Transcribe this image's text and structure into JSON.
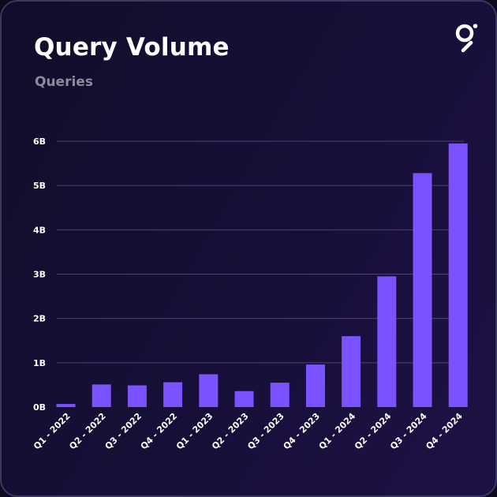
{
  "header": {
    "title": "Query Volume",
    "subtitle": "Queries",
    "logo_icon": "graph-logo-icon"
  },
  "colors": {
    "bar": "#7b52ff",
    "grid": "#4a4470",
    "text": "#ffffff",
    "subtitle": "#8e8a9c"
  },
  "chart_data": {
    "type": "bar",
    "title": "Query Volume",
    "subtitle": "Queries",
    "xlabel": "",
    "ylabel": "",
    "ylim": [
      0,
      6
    ],
    "y_unit": "B",
    "yticks": [
      0,
      1,
      2,
      3,
      4,
      5,
      6
    ],
    "ytick_labels": [
      "0B",
      "1B",
      "2B",
      "3B",
      "4B",
      "5B",
      "6B"
    ],
    "grid": true,
    "categories": [
      "Q1 - 2022",
      "Q2 - 2022",
      "Q3 - 2022",
      "Q4 - 2022",
      "Q1 - 2023",
      "Q2 - 2023",
      "Q3 - 2023",
      "Q4 - 2023",
      "Q1 - 2024",
      "Q2 - 2024",
      "Q3 - 2024",
      "Q4 - 2024"
    ],
    "values": [
      0.07,
      0.51,
      0.49,
      0.56,
      0.74,
      0.36,
      0.55,
      0.96,
      1.6,
      2.95,
      5.28,
      5.95
    ]
  }
}
